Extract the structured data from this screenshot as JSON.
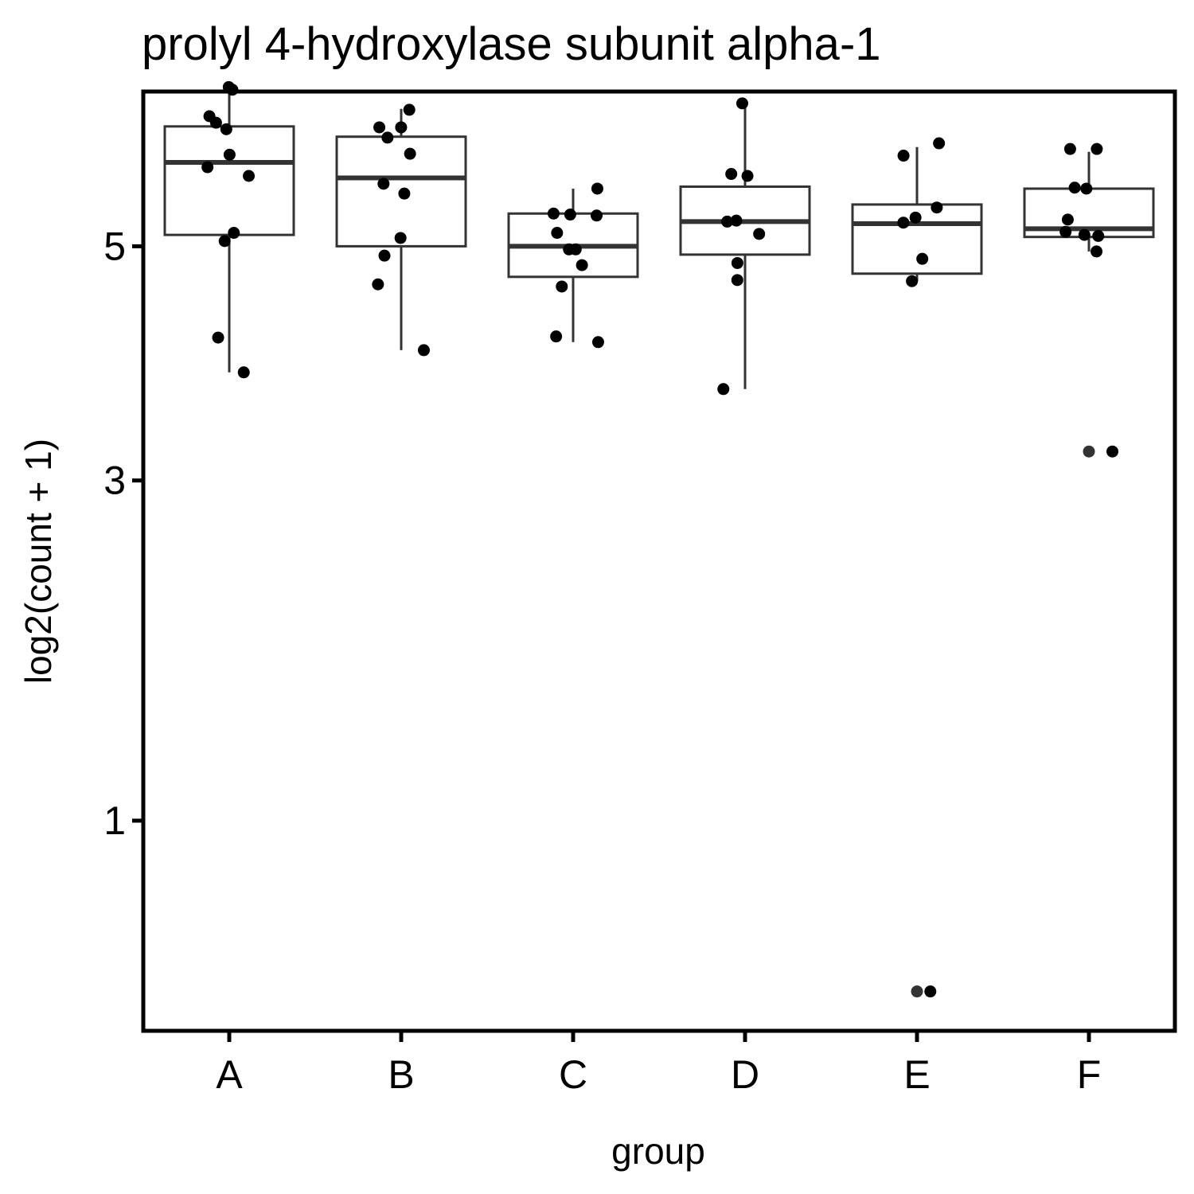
{
  "chart_data": {
    "type": "boxplot",
    "title": "prolyl 4-hydroxylase subunit alpha-1",
    "xlabel": "group",
    "ylabel": "log2(count + 1)",
    "y_scale": "sqrt",
    "ylim": [
      0.3,
      6.6
    ],
    "yticks": [
      1,
      3,
      5
    ],
    "ytick_labels": [
      "1",
      "3",
      "5"
    ],
    "categories": [
      "A",
      "B",
      "C",
      "D",
      "E",
      "F"
    ],
    "boxes": [
      {
        "group": "A",
        "whisker_low": 3.86,
        "q1": 5.11,
        "median": 5.84,
        "q3": 6.22,
        "whisker_high": 6.62
      },
      {
        "group": "B",
        "whisker_low": 4.05,
        "q1": 5.0,
        "median": 5.68,
        "q3": 6.11,
        "whisker_high": 6.41
      },
      {
        "group": "C",
        "whisker_low": 4.12,
        "q1": 4.71,
        "median": 5.0,
        "q3": 5.32,
        "whisker_high": 5.57
      },
      {
        "group": "D",
        "whisker_low": 3.72,
        "q1": 4.92,
        "median": 5.24,
        "q3": 5.59,
        "whisker_high": 6.47
      },
      {
        "group": "E",
        "whisker_low": 4.67,
        "q1": 4.74,
        "median": 5.22,
        "q3": 5.41,
        "whisker_high": 6.0
      },
      {
        "group": "F",
        "whisker_low": 4.95,
        "q1": 5.09,
        "median": 5.17,
        "q3": 5.57,
        "whisker_high": 5.95
      }
    ],
    "points": [
      {
        "group": "A",
        "values": [
          6.65,
          6.62,
          6.33,
          6.26,
          6.19,
          5.92,
          5.79,
          5.7,
          5.13,
          5.05,
          4.16,
          3.86
        ]
      },
      {
        "group": "B",
        "values": [
          6.4,
          6.21,
          6.21,
          6.1,
          5.93,
          5.62,
          5.52,
          5.08,
          4.91,
          4.64,
          4.05
        ]
      },
      {
        "group": "C",
        "values": [
          5.57,
          5.32,
          5.31,
          5.3,
          5.13,
          4.97,
          4.97,
          4.82,
          4.62,
          4.17,
          4.12
        ]
      },
      {
        "group": "D",
        "values": [
          6.47,
          5.72,
          5.7,
          5.25,
          5.24,
          5.12,
          4.84,
          4.68,
          3.72
        ]
      },
      {
        "group": "E",
        "values": [
          6.04,
          5.91,
          5.38,
          5.28,
          5.23,
          4.88,
          4.67,
          0.4
        ]
      },
      {
        "group": "F",
        "values": [
          5.98,
          5.98,
          5.58,
          5.57,
          5.26,
          5.14,
          5.11,
          5.1,
          4.95,
          3.22
        ]
      }
    ],
    "outliers": [
      {
        "group": "E",
        "value": 0.4
      },
      {
        "group": "F",
        "value": 3.22
      }
    ],
    "grid": false,
    "legend": "none"
  }
}
